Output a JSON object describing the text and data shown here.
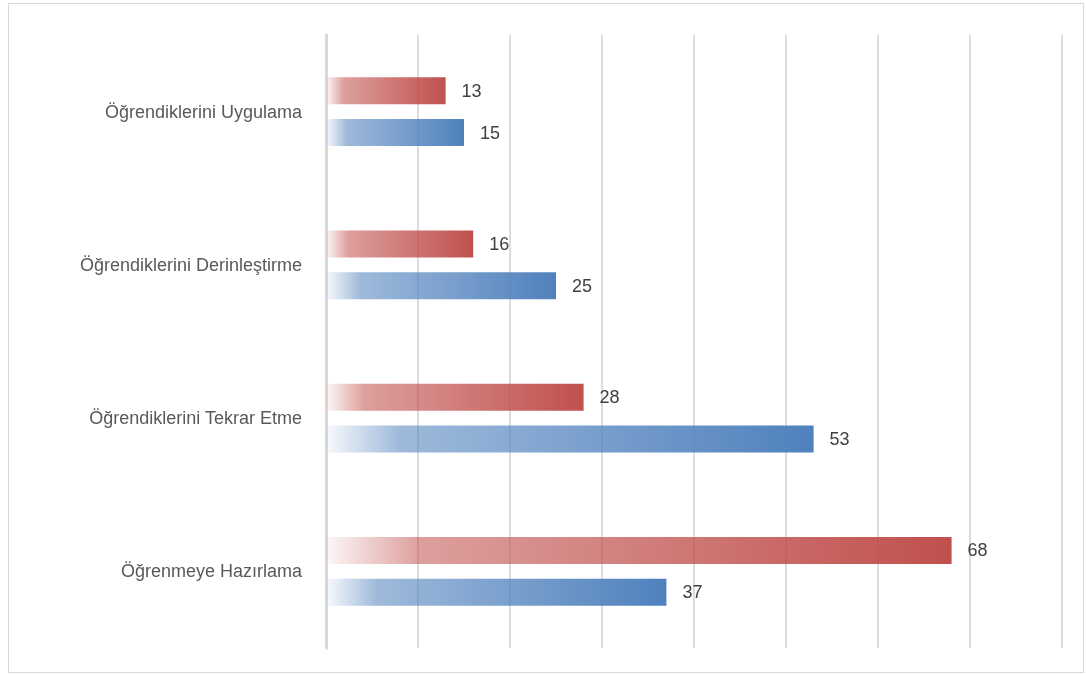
{
  "chart_data": {
    "type": "bar",
    "orientation": "horizontal",
    "categories": [
      "Öğrendiklerini Uygulama",
      "Öğrendiklerini Derinleştirme",
      "Öğrendiklerini Tekrar Etme",
      "Öğrenmeye Hazırlama"
    ],
    "series": [
      {
        "color": "#c0504d",
        "values": [
          13,
          16,
          28,
          68
        ]
      },
      {
        "color": "#4f81bd",
        "values": [
          15,
          25,
          53,
          37
        ]
      }
    ],
    "xlim": [
      0,
      80
    ],
    "xticks": [
      {
        "value": 0,
        "label": null
      },
      {
        "value": 10,
        "label": null
      },
      {
        "value": 20,
        "label": null
      },
      {
        "value": 30,
        "label": null
      },
      {
        "value": 40,
        "label": null
      },
      {
        "value": 50,
        "label": null
      },
      {
        "value": 60,
        "label": null
      },
      {
        "value": 70,
        "label": null
      },
      {
        "value": 80,
        "label": null
      }
    ],
    "grid": "x",
    "tick_labels": "y",
    "data_labels": true
  }
}
